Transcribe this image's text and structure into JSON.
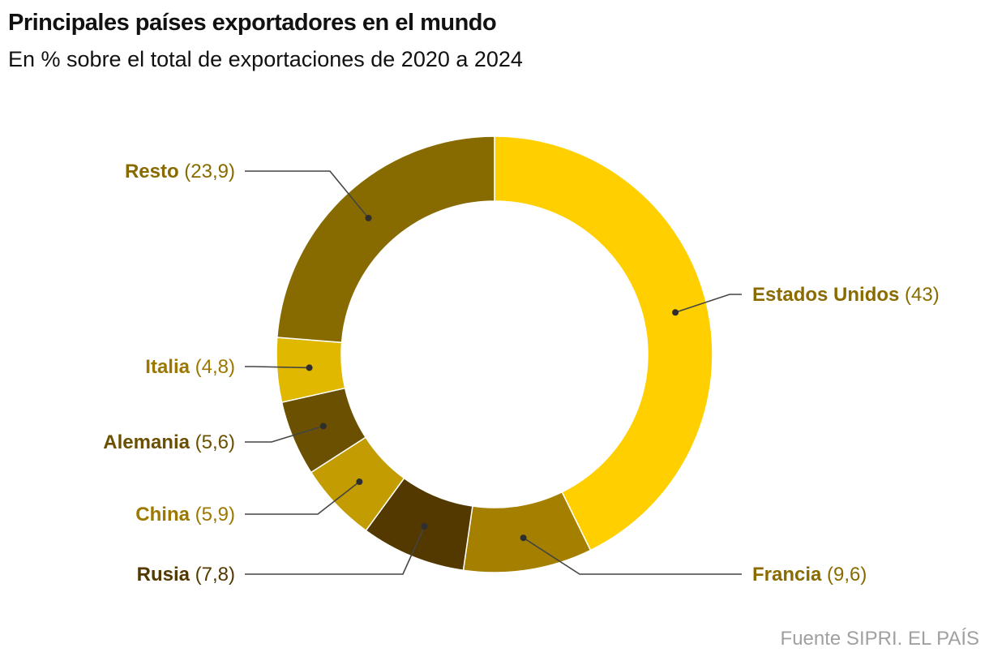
{
  "header": {
    "title": "Principales países exportadores en el mundo",
    "subtitle": "En % sobre el total de exportaciones de 2020 a 2024"
  },
  "footer": {
    "source": "Fuente SIPRI. EL PAÍS"
  },
  "chart_data": {
    "type": "pie",
    "variant": "donut",
    "title": "Principales países exportadores en el mundo",
    "subtitle": "En % sobre el total de exportaciones de 2020 a 2024",
    "unit": "%",
    "start": "top, clockwise",
    "slices": [
      {
        "label": "Estados Unidos",
        "value": 43,
        "value_text": "(43)",
        "color": "#ffcf00",
        "label_color": "#8a6b00",
        "side": "right"
      },
      {
        "label": "Francia",
        "value": 9.6,
        "value_text": "(9,6)",
        "color": "#a47f00",
        "label_color": "#8a6b00",
        "side": "right"
      },
      {
        "label": "Rusia",
        "value": 7.8,
        "value_text": "(7,8)",
        "color": "#533900",
        "label_color": "#533900",
        "side": "left"
      },
      {
        "label": "China",
        "value": 5.9,
        "value_text": "(5,9)",
        "color": "#c29c00",
        "label_color": "#9c7800",
        "side": "left"
      },
      {
        "label": "Alemania",
        "value": 5.6,
        "value_text": "(5,6)",
        "color": "#6a5000",
        "label_color": "#6a5000",
        "side": "left"
      },
      {
        "label": "Italia",
        "value": 4.8,
        "value_text": "(4,8)",
        "color": "#e0b800",
        "label_color": "#9c7800",
        "side": "left"
      },
      {
        "label": "Resto",
        "value": 23.9,
        "value_text": "(23,9)",
        "color": "#876b00",
        "label_color": "#876b00",
        "side": "left"
      }
    ]
  }
}
